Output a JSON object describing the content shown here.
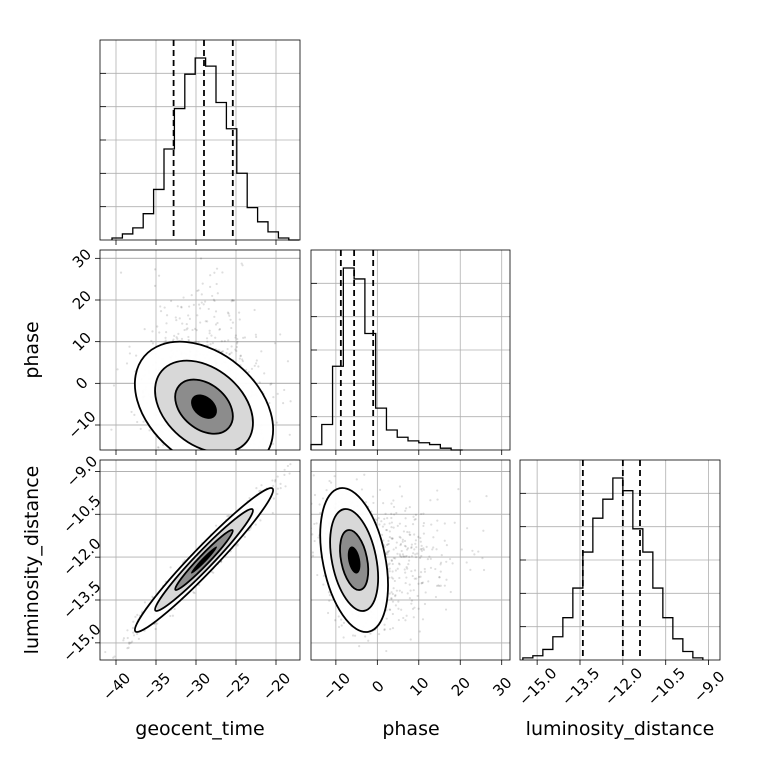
{
  "chart_data": {
    "type": "corner",
    "parameters": [
      "geocent_time",
      "phase",
      "luminosity_distance"
    ],
    "axis_labels": {
      "geocent_time": "geocent_time",
      "phase": "phase",
      "luminosity_distance": "luminosity_distance"
    },
    "ranges": {
      "geocent_time": [
        -42,
        -17
      ],
      "phase": [
        -16,
        32
      ],
      "luminosity_distance": [
        -15.6,
        -8.6
      ]
    },
    "ticks": {
      "geocent_time": [
        "-40",
        "-35",
        "-30",
        "-25",
        "-20"
      ],
      "phase": [
        "-10",
        "0",
        "10",
        "20",
        "30"
      ],
      "luminosity_distance": [
        "-15.0",
        "-13.5",
        "-12.0",
        "-10.5",
        "-9.0"
      ]
    },
    "histograms": {
      "geocent_time": {
        "bin_edges": [
          -40.5,
          -39.2,
          -37.9,
          -36.6,
          -35.3,
          -34.0,
          -32.7,
          -31.4,
          -30.1,
          -28.8,
          -27.5,
          -26.2,
          -24.9,
          -23.6,
          -22.3,
          -21.0,
          -19.7,
          -18.4,
          -17.1
        ],
        "counts": [
          1,
          3,
          6,
          13,
          25,
          45,
          65,
          82,
          90,
          86,
          68,
          55,
          33,
          16,
          9,
          4,
          1,
          0
        ],
        "quantiles": [
          -32.8,
          -29.0,
          -25.4
        ]
      },
      "phase": {
        "bin_edges": [
          -16.0,
          -13.4,
          -10.8,
          -8.2,
          -5.6,
          -3.0,
          -0.4,
          2.2,
          4.8,
          7.4,
          10.0,
          12.6,
          15.2,
          17.8,
          20.6
        ],
        "counts": [
          3,
          14,
          46,
          100,
          94,
          64,
          23,
          11,
          7,
          5,
          4,
          3,
          1,
          0
        ],
        "quantiles": [
          -8.8,
          -5.6,
          -1.0
        ]
      },
      "luminosity_distance": {
        "bin_edges": [
          -15.5,
          -15.15,
          -14.8,
          -14.45,
          -14.1,
          -13.75,
          -13.4,
          -13.05,
          -12.7,
          -12.35,
          -12.0,
          -11.65,
          -11.3,
          -10.95,
          -10.6,
          -10.25,
          -9.9,
          -9.55,
          -9.2
        ],
        "counts": [
          1,
          2,
          5,
          11,
          20,
          34,
          51,
          67,
          76,
          86,
          80,
          62,
          51,
          34,
          20,
          10,
          4,
          1
        ],
        "quantiles": [
          -13.4,
          -12.0,
          -11.4
        ]
      }
    },
    "pair_means": {
      "phase_vs_geocent_time": {
        "x": -29.0,
        "y": -5.6
      },
      "luminosity_distance_vs_geocent_time": {
        "x": -29.0,
        "y": -12.1
      },
      "luminosity_distance_vs_phase": {
        "x": -5.6,
        "y": -12.1
      }
    },
    "grid": true
  }
}
